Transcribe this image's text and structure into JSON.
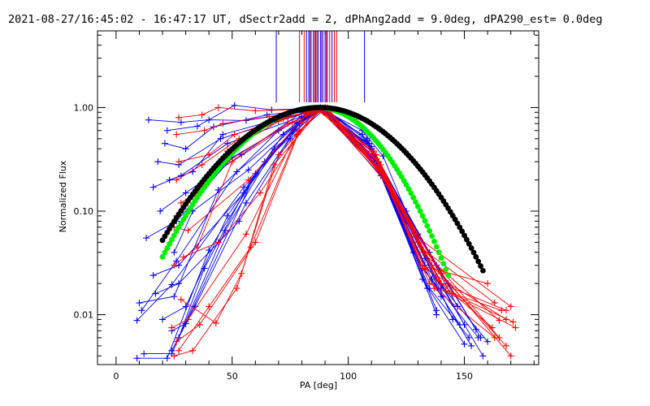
{
  "chart_data": {
    "type": "line",
    "title": "2021-08-27/16:45:02 - 16:47:17 UT, dSectr2add = 2, dPhAng2add = 9.0deg, dPA290_est=  0.0deg",
    "xlabel": "PA [deg]",
    "ylabel": "Normalized Flux",
    "xlim": [
      -8,
      182
    ],
    "ylim": [
      0.0033,
      5.5
    ],
    "yscale": "log",
    "xticks": [
      0,
      50,
      100,
      150
    ],
    "xtick_labels": [
      "0",
      "50",
      "100",
      "150"
    ],
    "yticks": [
      0.01,
      0.1,
      1.0
    ],
    "ytick_labels": [
      "0.01",
      "0.10",
      "1.00"
    ],
    "grid": false,
    "colors": {
      "blue": "#0000ff",
      "red": "#ff0000",
      "green": "#00ee00",
      "black": "#000000"
    },
    "vertical_markers": {
      "blue_x": [
        69,
        82,
        83,
        84,
        85,
        86,
        87,
        88,
        89,
        90,
        91,
        93,
        107
      ],
      "red_x": [
        79,
        81,
        83.5,
        85.5,
        86.5,
        88.5,
        90.5,
        92,
        94,
        95
      ]
    },
    "fit_curves": [
      {
        "color": "green",
        "x_range": [
          20,
          143
        ],
        "peak_x": 87,
        "sigma_left": 26,
        "sigma_right": 20.5
      },
      {
        "color": "black",
        "x_range": [
          20,
          158
        ],
        "peak_x": 88,
        "sigma_left": 28,
        "sigma_right": 26
      }
    ],
    "series": [
      {
        "color": "blue",
        "values": [
          [
            9,
            0.0088
          ],
          [
            24,
            0.0195
          ],
          [
            55,
            0.17
          ],
          [
            80,
            0.75
          ],
          [
            89,
            0.97
          ],
          [
            110,
            0.4
          ],
          [
            132,
            0.022
          ],
          [
            150,
            0.0052
          ]
        ]
      },
      {
        "color": "blue",
        "values": [
          [
            11,
            0.011
          ],
          [
            26,
            0.033
          ],
          [
            52,
            0.24
          ],
          [
            78,
            0.72
          ],
          [
            90,
            0.99
          ],
          [
            112,
            0.3
          ],
          [
            128,
            0.04
          ],
          [
            148,
            0.008
          ]
        ]
      },
      {
        "color": "blue",
        "values": [
          [
            13,
            0.055
          ],
          [
            26,
            0.08
          ],
          [
            50,
            0.33
          ],
          [
            82,
            0.86
          ],
          [
            88,
            1.0
          ],
          [
            113,
            0.25
          ],
          [
            135,
            0.018
          ],
          [
            152,
            0.006
          ]
        ]
      },
      {
        "color": "blue",
        "values": [
          [
            14,
            0.76
          ],
          [
            28,
            0.72
          ],
          [
            40,
            0.76
          ],
          [
            56,
            0.75
          ],
          [
            75,
            0.88
          ],
          [
            91,
            0.96
          ],
          [
            110,
            0.4
          ],
          [
            140,
            0.018
          ]
        ]
      },
      {
        "color": "blue",
        "values": [
          [
            16,
            0.17
          ],
          [
            28,
            0.22
          ],
          [
            48,
            0.45
          ],
          [
            80,
            0.82
          ],
          [
            90,
            0.97
          ],
          [
            108,
            0.5
          ],
          [
            120,
            0.13
          ],
          [
            143,
            0.02
          ]
        ]
      },
      {
        "color": "blue",
        "values": [
          [
            12,
            0.0042
          ],
          [
            24,
            0.0042
          ],
          [
            47,
            0.065
          ],
          [
            68,
            0.4
          ],
          [
            88,
            0.96
          ],
          [
            111,
            0.3
          ],
          [
            135,
            0.04
          ],
          [
            155,
            0.0072
          ]
        ]
      },
      {
        "color": "blue",
        "values": [
          [
            9,
            0.0038
          ],
          [
            22,
            0.0038
          ],
          [
            40,
            0.042
          ],
          [
            64,
            0.3
          ],
          [
            87,
            0.95
          ],
          [
            109,
            0.45
          ],
          [
            138,
            0.03
          ]
        ]
      },
      {
        "color": "blue",
        "values": [
          [
            20,
            0.009
          ],
          [
            30,
            0.012
          ],
          [
            48,
            0.09
          ],
          [
            72,
            0.55
          ],
          [
            88,
            0.98
          ],
          [
            110,
            0.42
          ],
          [
            130,
            0.06
          ],
          [
            157,
            0.006
          ]
        ]
      },
      {
        "color": "blue",
        "values": [
          [
            18,
            0.3
          ],
          [
            27,
            0.28
          ],
          [
            45,
            0.5
          ],
          [
            70,
            0.74
          ],
          [
            89,
            0.98
          ],
          [
            112,
            0.35
          ],
          [
            138,
            0.011
          ]
        ]
      },
      {
        "color": "blue",
        "values": [
          [
            19,
            0.1
          ],
          [
            30,
            0.15
          ],
          [
            54,
            0.35
          ],
          [
            80,
            0.9
          ],
          [
            90,
            1.0
          ],
          [
            111,
            0.33
          ],
          [
            133,
            0.03
          ],
          [
            160,
            0.0055
          ]
        ]
      },
      {
        "color": "blue",
        "values": [
          [
            22,
            0.6
          ],
          [
            35,
            0.66
          ],
          [
            51,
            1.05
          ],
          [
            67,
            0.95
          ],
          [
            88,
            0.99
          ],
          [
            114,
            0.22
          ],
          [
            134,
            0.018
          ]
        ]
      },
      {
        "color": "blue",
        "values": [
          [
            23,
            0.2
          ],
          [
            33,
            0.24
          ],
          [
            46,
            0.55
          ],
          [
            74,
            0.82
          ],
          [
            90,
            0.98
          ],
          [
            113,
            0.3
          ],
          [
            138,
            0.01
          ]
        ]
      },
      {
        "color": "blue",
        "values": [
          [
            25,
            0.04
          ],
          [
            33,
            0.1
          ],
          [
            57,
            0.25
          ],
          [
            78,
            0.7
          ],
          [
            88,
            0.96
          ],
          [
            106,
            0.55
          ],
          [
            125,
            0.08
          ],
          [
            150,
            0.008
          ]
        ]
      },
      {
        "color": "blue",
        "values": [
          [
            27,
            0.006
          ],
          [
            38,
            0.028
          ],
          [
            58,
            0.2
          ],
          [
            80,
            0.78
          ],
          [
            90,
            0.97
          ],
          [
            108,
            0.48
          ],
          [
            131,
            0.03
          ]
        ]
      },
      {
        "color": "blue",
        "values": [
          [
            16,
            0.024
          ],
          [
            27,
            0.03
          ],
          [
            55,
            0.15
          ],
          [
            76,
            0.62
          ],
          [
            89,
            0.98
          ],
          [
            112,
            0.32
          ],
          [
            125,
            0.1
          ],
          [
            147,
            0.012
          ]
        ]
      },
      {
        "color": "blue",
        "values": [
          [
            10,
            0.013
          ],
          [
            25,
            0.015
          ],
          [
            44,
            0.16
          ],
          [
            70,
            0.6
          ],
          [
            87,
            0.98
          ],
          [
            110,
            0.4
          ],
          [
            136,
            0.022
          ],
          [
            153,
            0.005
          ]
        ]
      },
      {
        "color": "blue",
        "values": [
          [
            24,
            0.0045
          ],
          [
            34,
            0.012
          ],
          [
            56,
            0.12
          ],
          [
            79,
            0.7
          ],
          [
            89,
            0.99
          ],
          [
            113,
            0.28
          ],
          [
            129,
            0.06
          ],
          [
            145,
            0.009
          ]
        ]
      },
      {
        "color": "blue",
        "values": [
          [
            21,
            0.45
          ],
          [
            30,
            0.4
          ],
          [
            42,
            0.65
          ],
          [
            65,
            0.85
          ],
          [
            88,
            0.98
          ],
          [
            106,
            0.6
          ],
          [
            115,
            0.34
          ],
          [
            140,
            0.015
          ]
        ]
      },
      {
        "color": "blue",
        "values": [
          [
            17,
            0.016
          ],
          [
            27,
            0.02
          ],
          [
            53,
            0.08
          ],
          [
            75,
            0.5
          ],
          [
            90,
            0.97
          ],
          [
            114,
            0.24
          ],
          [
            133,
            0.035
          ],
          [
            158,
            0.004
          ]
        ]
      },
      {
        "color": "blue",
        "values": [
          [
            24,
            0.007
          ],
          [
            30,
            0.0082
          ],
          [
            60,
            0.23
          ],
          [
            82,
            0.82
          ],
          [
            88,
            1.0
          ],
          [
            112,
            0.3
          ],
          [
            132,
            0.028
          ],
          [
            156,
            0.006
          ]
        ]
      },
      {
        "color": "red",
        "values": [
          [
            27,
            0.0045
          ],
          [
            40,
            0.012
          ],
          [
            58,
            0.045
          ],
          [
            78,
            0.55
          ],
          [
            88,
            0.95
          ],
          [
            114,
            0.28
          ],
          [
            130,
            0.05
          ],
          [
            165,
            0.006
          ]
        ]
      },
      {
        "color": "red",
        "values": [
          [
            25,
            0.03
          ],
          [
            35,
            0.045
          ],
          [
            50,
            0.3
          ],
          [
            76,
            0.72
          ],
          [
            89,
            0.98
          ],
          [
            110,
            0.38
          ],
          [
            128,
            0.06
          ],
          [
            170,
            0.012
          ]
        ]
      },
      {
        "color": "red",
        "values": [
          [
            27,
            0.8
          ],
          [
            37,
            0.85
          ],
          [
            44,
            1.0
          ],
          [
            60,
            0.93
          ],
          [
            86,
            0.97
          ],
          [
            112,
            0.35
          ],
          [
            136,
            0.03
          ],
          [
            168,
            0.005
          ]
        ]
      },
      {
        "color": "red",
        "values": [
          [
            26,
            0.09
          ],
          [
            35,
            0.15
          ],
          [
            48,
            0.38
          ],
          [
            72,
            0.78
          ],
          [
            90,
            0.99
          ],
          [
            116,
            0.2
          ],
          [
            135,
            0.02
          ],
          [
            172,
            0.0075
          ]
        ]
      },
      {
        "color": "red",
        "values": [
          [
            24,
            0.0075
          ],
          [
            31,
            0.009
          ],
          [
            56,
            0.06
          ],
          [
            80,
            0.72
          ],
          [
            90,
            0.99
          ],
          [
            115,
            0.22
          ],
          [
            145,
            0.016
          ],
          [
            166,
            0.011
          ]
        ]
      },
      {
        "color": "red",
        "values": [
          [
            26,
            0.2
          ],
          [
            37,
            0.28
          ],
          [
            53,
            0.5
          ],
          [
            74,
            0.8
          ],
          [
            88,
            0.98
          ],
          [
            113,
            0.3
          ],
          [
            131,
            0.03
          ],
          [
            160,
            0.02
          ]
        ]
      },
      {
        "color": "red",
        "values": [
          [
            28,
            0.014
          ],
          [
            43,
            0.0083
          ],
          [
            54,
            0.025
          ],
          [
            68,
            0.28
          ],
          [
            88,
            0.96
          ],
          [
            114,
            0.25
          ],
          [
            140,
            0.025
          ],
          [
            170,
            0.004
          ]
        ]
      },
      {
        "color": "red",
        "values": [
          [
            26,
            0.55
          ],
          [
            38,
            0.6
          ],
          [
            46,
            0.7
          ],
          [
            66,
            0.82
          ],
          [
            89,
            0.99
          ],
          [
            111,
            0.38
          ],
          [
            131,
            0.045
          ],
          [
            163,
            0.013
          ]
        ]
      },
      {
        "color": "red",
        "values": [
          [
            25,
            0.07
          ],
          [
            31,
            0.065
          ],
          [
            57,
            0.2
          ],
          [
            82,
            0.86
          ],
          [
            90,
            1.0
          ],
          [
            113,
            0.26
          ],
          [
            133,
            0.028
          ],
          [
            168,
            0.009
          ]
        ]
      },
      {
        "color": "red",
        "values": [
          [
            29,
            0.036
          ],
          [
            44,
            0.05
          ],
          [
            62,
            0.15
          ],
          [
            85,
            0.9
          ],
          [
            91,
            0.98
          ],
          [
            116,
            0.2
          ],
          [
            138,
            0.022
          ],
          [
            162,
            0.0075
          ]
        ]
      },
      {
        "color": "red",
        "values": [
          [
            25,
            0.004
          ],
          [
            33,
            0.0045
          ],
          [
            52,
            0.018
          ],
          [
            70,
            0.35
          ],
          [
            88,
            0.97
          ],
          [
            112,
            0.32
          ],
          [
            142,
            0.017
          ],
          [
            171,
            0.0085
          ]
        ]
      },
      {
        "color": "red",
        "values": [
          [
            27,
            0.3
          ],
          [
            40,
            0.35
          ],
          [
            51,
            0.55
          ],
          [
            70,
            0.76
          ],
          [
            87,
            0.98
          ],
          [
            115,
            0.23
          ],
          [
            132,
            0.04
          ],
          [
            165,
            0.0088
          ]
        ]
      },
      {
        "color": "red",
        "values": [
          [
            26,
            0.0055
          ],
          [
            36,
            0.008
          ],
          [
            60,
            0.05
          ],
          [
            79,
            0.6
          ],
          [
            89,
            0.97
          ],
          [
            117,
            0.18
          ],
          [
            137,
            0.018
          ],
          [
            163,
            0.006
          ]
        ]
      },
      {
        "color": "red",
        "values": [
          [
            28,
            0.12
          ],
          [
            39,
            0.18
          ],
          [
            48,
            0.3
          ],
          [
            74,
            0.7
          ],
          [
            91,
            0.99
          ],
          [
            114,
            0.25
          ],
          [
            140,
            0.02
          ],
          [
            168,
            0.011
          ]
        ]
      }
    ]
  }
}
